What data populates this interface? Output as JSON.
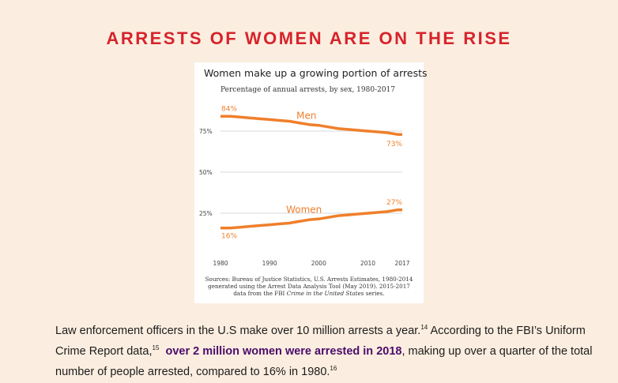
{
  "headline": "ARRESTS OF WOMEN ARE ON THE RISE",
  "colors": {
    "headline": "#d7232b",
    "line": "#f07f2b",
    "highlight": "#4a0c6b"
  },
  "chart_data": {
    "type": "line",
    "title": "Women make up a growing portion of arrests",
    "subtitle": "Percentage of annual arrests, by sex, 1980-2017",
    "xlim": [
      1980,
      2017
    ],
    "ylim": [
      0,
      100
    ],
    "x_ticks": [
      1980,
      1990,
      2000,
      2010,
      2017
    ],
    "x_tick_labels": [
      "1980",
      "1990",
      "2000",
      "2010",
      "2017"
    ],
    "y_ticks": [
      25,
      50,
      75
    ],
    "y_tick_labels": [
      "25%",
      "50%",
      "75%"
    ],
    "grid": true,
    "series": [
      {
        "name": "Men",
        "x": [
          1980,
          1982,
          1984,
          1986,
          1988,
          1990,
          1992,
          1994,
          1996,
          1998,
          2000,
          2002,
          2004,
          2006,
          2008,
          2010,
          2012,
          2014,
          2016,
          2017
        ],
        "values": [
          84,
          84,
          83.5,
          83,
          82.5,
          82,
          81.5,
          81,
          80,
          79,
          78.5,
          77.5,
          76.5,
          76,
          75.5,
          75,
          74.5,
          74,
          73,
          73
        ],
        "label_text": "Men",
        "start_label": "84%",
        "end_label": "73%"
      },
      {
        "name": "Women",
        "x": [
          1980,
          1982,
          1984,
          1986,
          1988,
          1990,
          1992,
          1994,
          1996,
          1998,
          2000,
          2002,
          2004,
          2006,
          2008,
          2010,
          2012,
          2014,
          2016,
          2017
        ],
        "values": [
          16,
          16,
          16.5,
          17,
          17.5,
          18,
          18.5,
          19,
          20,
          21,
          21.5,
          22.5,
          23.5,
          24,
          24.5,
          25,
          25.5,
          26,
          27,
          27
        ],
        "label_text": "Women",
        "start_label": "16%",
        "end_label": "27%"
      }
    ],
    "sources": [
      "Sources: Bureau of Justice Statistics, U.S. Arrests Estimates, 1980-2014",
      "generated using the Arrest Data Analysis Tool (May 2019). 2015-2017",
      "data from the FBI ",
      "Crime in the United States",
      " series."
    ]
  },
  "body": {
    "part1": "Law enforcement officers in the U.S make over 10 million arrests a year.",
    "ref1": "14",
    "part2": "  According to the FBI’s Uniform Crime Report data,",
    "ref2": "15",
    "highlight": "over 2 million women were arrested in 2018",
    "part3": ", making up over a quarter of the total number of people arrested, compared to 16% in 1980.",
    "ref3": "16"
  }
}
